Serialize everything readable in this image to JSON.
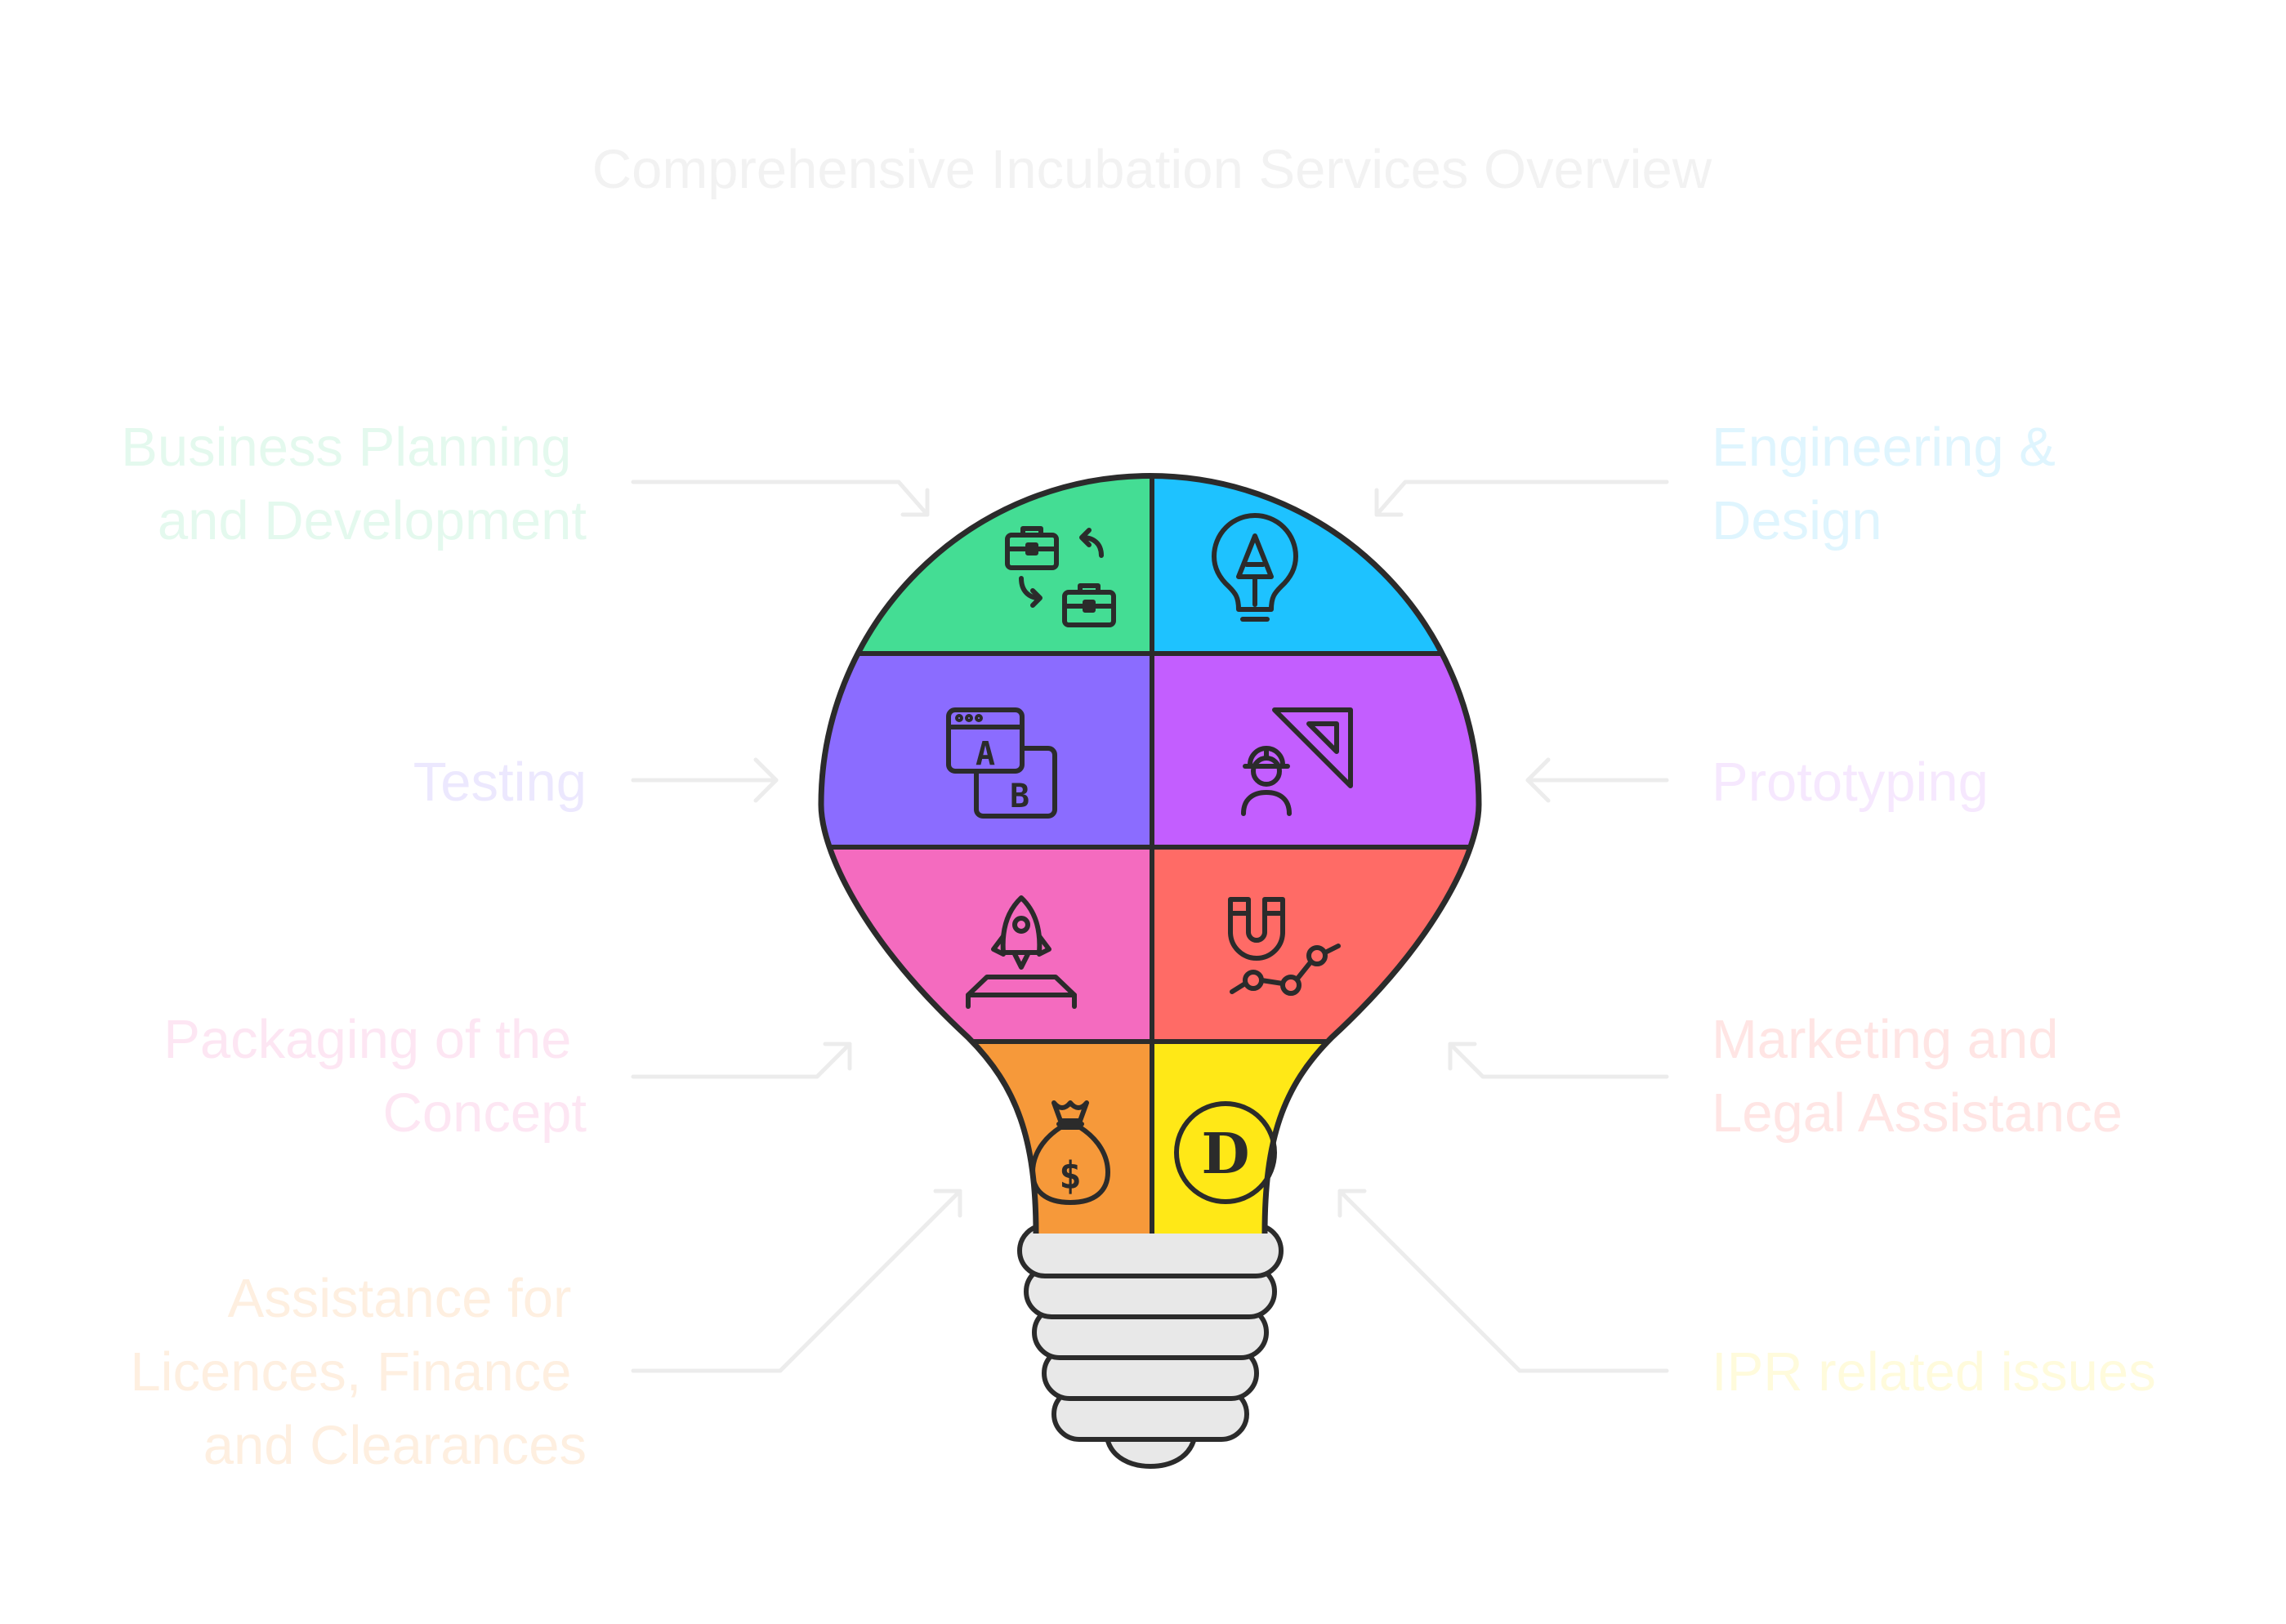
{
  "title": "Comprehensive Incubation Services Overview",
  "colors": {
    "business": "#44dd94",
    "engineering": "#1ec2ff",
    "testing": "#8b6cff",
    "prototyping": "#c35eff",
    "packaging": "#f46bbf",
    "marketing": "#ff6b66",
    "licences": "#f6993a",
    "ipr": "#ffe817",
    "outline": "#2b2b2b",
    "base": "#e8e8e8",
    "arrow": "#ececec"
  },
  "left_labels": {
    "business": [
      "Business Planning",
      "and Development"
    ],
    "testing": [
      "Testing"
    ],
    "packaging": [
      "Packaging of the",
      "Concept"
    ],
    "licences": [
      "Assistance for",
      "Licences, Finance",
      "and Clearances"
    ]
  },
  "right_labels": {
    "engineering": [
      "Engineering &",
      "Design"
    ],
    "prototyping": [
      "Prototyping"
    ],
    "marketing": [
      "Marketing and",
      "Legal Assistance"
    ],
    "ipr": [
      "IPR related issues"
    ]
  },
  "label_colors": {
    "business": "#e4f9ee",
    "engineering": "#dff5fe",
    "testing": "#ece8fe",
    "prototyping": "#f6e8fe",
    "packaging": "#fde6f3",
    "marketing": "#ffe5e4",
    "licences": "#feefe0",
    "ipr": "#fffbdc",
    "title": "#f2f2f2"
  },
  "icons": {
    "business": "briefcase-swap-icon",
    "engineering": "pencil-lightbulb-icon",
    "testing": "ab-test-icon",
    "prototyping": "engineer-set-square-icon",
    "packaging": "rocket-launch-icon",
    "marketing": "magnet-growth-icon",
    "licences": "money-bag-icon",
    "ipr": "d-coin-icon"
  },
  "icon_text": {
    "a": "A",
    "b": "B",
    "dollar": "$",
    "d": "D"
  }
}
